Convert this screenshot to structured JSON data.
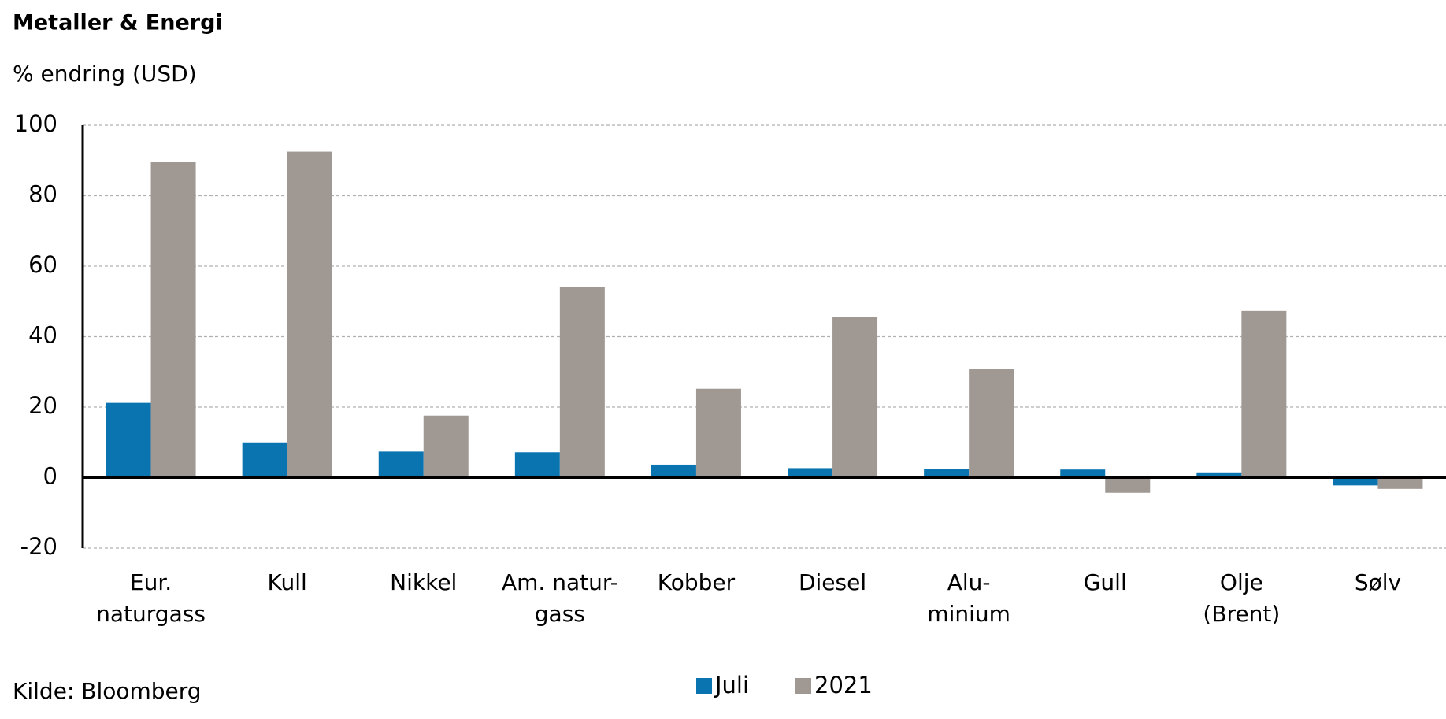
{
  "chart_data": {
    "type": "bar",
    "title": "Metaller & Energi",
    "subtitle": "% endring (USD)",
    "source": "Kilde: Bloomberg",
    "categories": [
      [
        "Eur.",
        "naturgass"
      ],
      [
        "Kull"
      ],
      [
        "Nikkel"
      ],
      [
        "Am. natur-",
        "gass"
      ],
      [
        "Kobber"
      ],
      [
        "Diesel"
      ],
      [
        "Alu-",
        "minium"
      ],
      [
        "Gull"
      ],
      [
        "Olje",
        "(Brent)"
      ],
      [
        "Sølv"
      ]
    ],
    "series": [
      {
        "name": "Juli",
        "color": "#0a74b1",
        "values": [
          21.2,
          10,
          7.4,
          7.2,
          3.7,
          2.7,
          2.5,
          2.3,
          1.5,
          -2.2
        ]
      },
      {
        "name": "2021",
        "color": "#a09893",
        "values": [
          89.5,
          92.5,
          17.6,
          54,
          25.2,
          45.6,
          30.8,
          -4.3,
          47.3,
          -3.2
        ]
      }
    ],
    "ylim": [
      -20,
      100
    ],
    "yticks": [
      -20,
      0,
      20,
      40,
      60,
      80,
      100
    ],
    "grid": true,
    "legend": "bottom"
  }
}
